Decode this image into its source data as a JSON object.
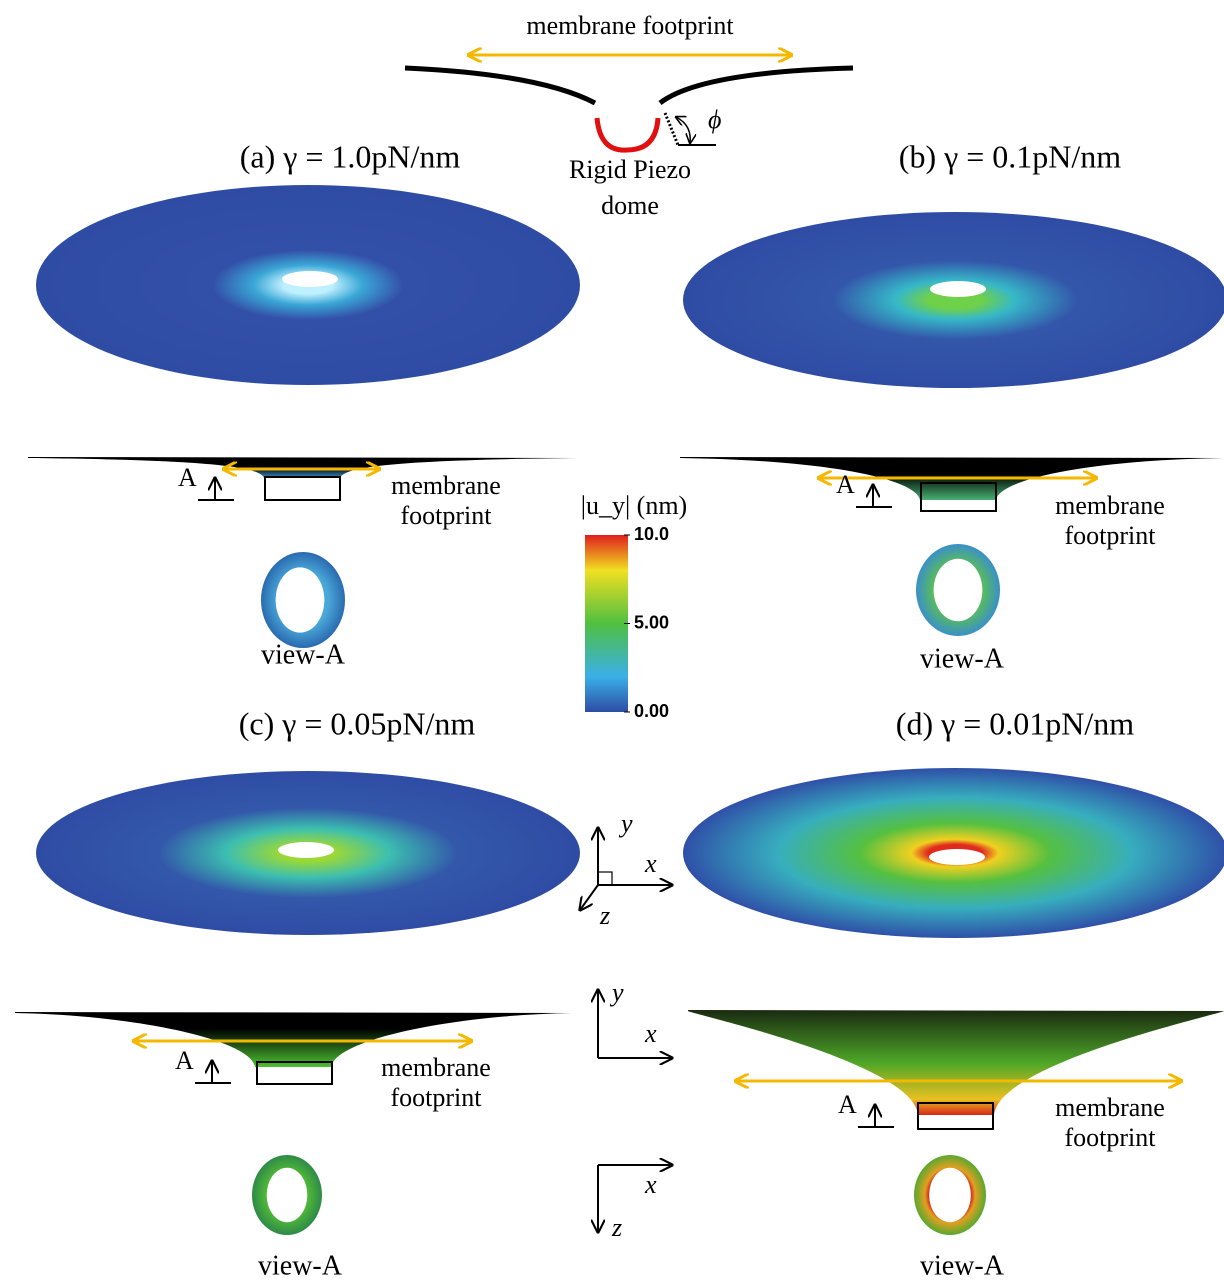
{
  "schematic": {
    "footprint_label": "membrane footprint",
    "dome_label": [
      "Rigid Piezo",
      "dome"
    ],
    "angle_label": "ϕ"
  },
  "panels": [
    {
      "title": "(a) γ = 1.0pN/nm",
      "section_label": "A",
      "footprint_label": [
        "membrane",
        "footprint"
      ],
      "view_label": "view-A"
    },
    {
      "title": "(b) γ = 0.1pN/nm",
      "section_label": "A",
      "footprint_label": [
        "membrane",
        "footprint"
      ],
      "view_label": "view-A"
    },
    {
      "title": "(c) γ = 0.05pN/nm",
      "section_label": "A",
      "footprint_label": [
        "membrane",
        "footprint"
      ],
      "view_label": "view-A"
    },
    {
      "title": "(d) γ = 0.01pN/nm",
      "section_label": "A",
      "footprint_label": [
        "membrane",
        "footprint"
      ],
      "view_label": "view-A"
    }
  ],
  "colorbar": {
    "title": "|u_y| (nm)",
    "range": [
      0,
      10
    ],
    "ticks": [
      {
        "value": 10,
        "label": "10.0"
      },
      {
        "value": 5,
        "label": "5.00"
      },
      {
        "value": 0,
        "label": "0.00"
      }
    ]
  },
  "axes": [
    {
      "labels": [
        "y",
        "x",
        "z"
      ]
    },
    {
      "labels": [
        "y",
        "x"
      ]
    },
    {
      "labels": [
        "x",
        "z"
      ]
    }
  ]
}
